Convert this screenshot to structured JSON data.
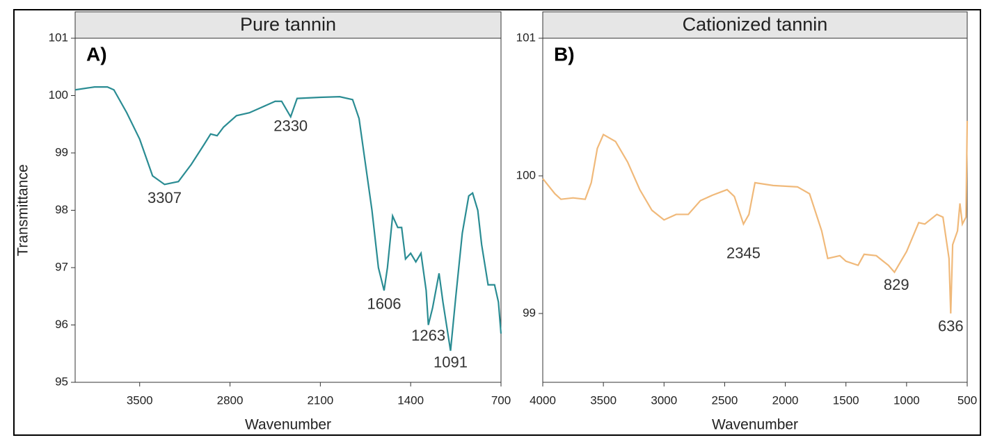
{
  "chart_data": [
    {
      "type": "line",
      "title": "Pure tannin",
      "panel_label": "A)",
      "xlabel": "Wavenumber",
      "ylabel": "Transmittance",
      "color": "#2a8c93",
      "x": [
        4000,
        3850,
        3750,
        3700,
        3600,
        3500,
        3400,
        3307,
        3200,
        3100,
        3000,
        2950,
        2900,
        2850,
        2750,
        2650,
        2550,
        2450,
        2400,
        2330,
        2280,
        2100,
        1950,
        1850,
        1800,
        1750,
        1700,
        1650,
        1606,
        1580,
        1540,
        1500,
        1470,
        1440,
        1400,
        1360,
        1320,
        1280,
        1263,
        1230,
        1180,
        1150,
        1091,
        1050,
        1000,
        950,
        920,
        880,
        850,
        800,
        750,
        720,
        700
      ],
      "values": [
        100.1,
        100.15,
        100.15,
        100.1,
        99.7,
        99.24,
        98.6,
        98.45,
        98.5,
        98.8,
        99.15,
        99.33,
        99.3,
        99.45,
        99.65,
        99.7,
        99.8,
        99.9,
        99.9,
        99.63,
        99.95,
        99.97,
        99.98,
        99.93,
        99.6,
        98.8,
        98.0,
        97.0,
        96.6,
        97.0,
        97.9,
        97.7,
        97.7,
        97.15,
        97.25,
        97.1,
        97.25,
        96.6,
        96.0,
        96.3,
        96.9,
        96.4,
        95.55,
        96.5,
        97.6,
        98.25,
        98.3,
        98.0,
        97.4,
        96.7,
        96.7,
        96.4,
        95.85
      ],
      "xlim": [
        4000,
        700
      ],
      "xticks": [
        3500,
        2800,
        2100,
        1400,
        700
      ],
      "ylim": [
        95,
        101
      ],
      "yticks": [
        95,
        96,
        97,
        98,
        99,
        100,
        101
      ],
      "annotations": [
        {
          "text": "3307",
          "x": 3307,
          "y": 98.2
        },
        {
          "text": "2330",
          "x": 2330,
          "y": 99.45
        },
        {
          "text": "1606",
          "x": 1606,
          "y": 96.35
        },
        {
          "text": "1263",
          "x": 1263,
          "y": 95.8
        },
        {
          "text": "1091",
          "x": 1091,
          "y": 95.33
        }
      ]
    },
    {
      "type": "line",
      "title": "Cationized tannin",
      "panel_label": "B)",
      "xlabel": "Wavenumber",
      "color": "#f0b97a",
      "x": [
        4000,
        3900,
        3850,
        3750,
        3650,
        3600,
        3550,
        3500,
        3400,
        3300,
        3200,
        3100,
        3000,
        2900,
        2800,
        2700,
        2600,
        2480,
        2420,
        2345,
        2300,
        2250,
        2100,
        1900,
        1800,
        1700,
        1650,
        1550,
        1500,
        1400,
        1350,
        1250,
        1150,
        1100,
        1000,
        900,
        850,
        750,
        700,
        650,
        636,
        620,
        580,
        560,
        540,
        510,
        500
      ],
      "values": [
        99.98,
        99.87,
        99.83,
        99.84,
        99.83,
        99.95,
        100.2,
        100.3,
        100.25,
        100.1,
        99.9,
        99.75,
        99.68,
        99.72,
        99.72,
        99.82,
        99.86,
        99.9,
        99.85,
        99.65,
        99.72,
        99.95,
        99.93,
        99.92,
        99.87,
        99.6,
        99.4,
        99.42,
        99.38,
        99.35,
        99.43,
        99.42,
        99.35,
        99.3,
        99.45,
        99.66,
        99.65,
        99.72,
        99.7,
        99.4,
        99.0,
        99.5,
        99.6,
        99.8,
        99.65,
        99.7,
        100.4
      ],
      "xlim": [
        4000,
        500
      ],
      "xticks": [
        4000,
        3500,
        3000,
        2500,
        2000,
        1500,
        1000,
        500
      ],
      "ylim": [
        98.5,
        101
      ],
      "yticks": [
        99,
        100,
        101
      ],
      "annotations": [
        {
          "text": "2345",
          "x": 2345,
          "y": 99.43
        },
        {
          "text": "829",
          "x": 1084,
          "y": 99.2
        },
        {
          "text": "636",
          "x": 636,
          "y": 98.9
        }
      ]
    }
  ]
}
